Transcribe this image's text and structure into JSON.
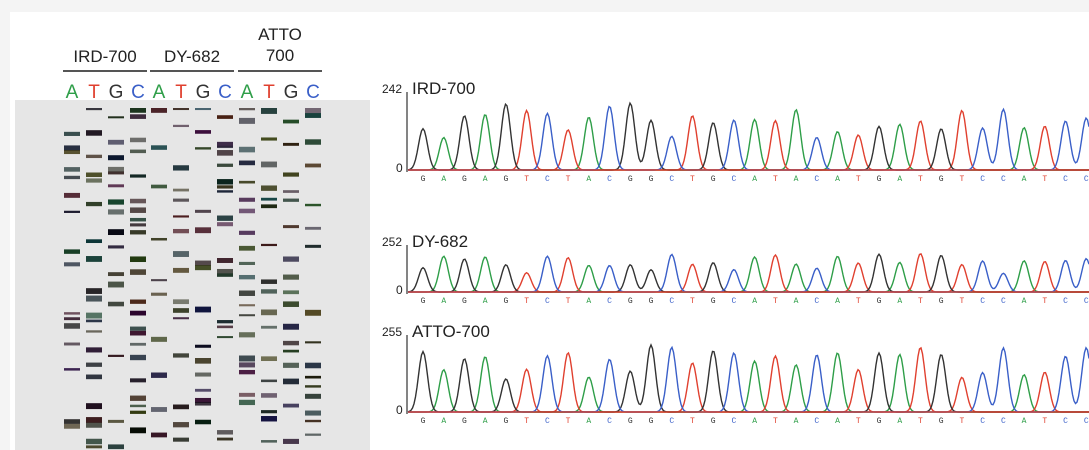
{
  "gel": {
    "groups": [
      {
        "label": "IRD-700"
      },
      {
        "label": "DY-682"
      },
      {
        "label_lines": [
          "ATTO",
          "700"
        ]
      }
    ],
    "lanes": [
      "A",
      "T",
      "G",
      "C"
    ]
  },
  "traces": [
    {
      "max": 242,
      "min": 0,
      "label": "IRD-700",
      "sequence": [
        "G",
        "A",
        "G",
        "A",
        "G",
        "T",
        "C",
        "T",
        "A",
        "C",
        "G",
        "G",
        "C",
        "T",
        "G",
        "C",
        "A",
        "T",
        "A",
        "C",
        "A",
        "T",
        "G",
        "A",
        "T",
        "G",
        "T",
        "C",
        "C",
        "A",
        "T",
        "C",
        "C"
      ]
    },
    {
      "max": 252,
      "min": 0,
      "label": "DY-682",
      "sequence": [
        "G",
        "A",
        "G",
        "A",
        "G",
        "T",
        "C",
        "T",
        "A",
        "C",
        "G",
        "G",
        "C",
        "T",
        "G",
        "C",
        "A",
        "T",
        "A",
        "C",
        "A",
        "T",
        "G",
        "A",
        "T",
        "G",
        "T",
        "C",
        "C",
        "A",
        "T",
        "C",
        "C"
      ]
    },
    {
      "max": 255,
      "min": 0,
      "label": "ATTO-700",
      "sequence": [
        "G",
        "A",
        "G",
        "A",
        "G",
        "T",
        "C",
        "T",
        "A",
        "C",
        "G",
        "G",
        "C",
        "T",
        "G",
        "C",
        "A",
        "T",
        "A",
        "C",
        "A",
        "T",
        "G",
        "A",
        "T",
        "G",
        "T",
        "C",
        "C",
        "A",
        "T",
        "C",
        "C"
      ]
    }
  ]
}
